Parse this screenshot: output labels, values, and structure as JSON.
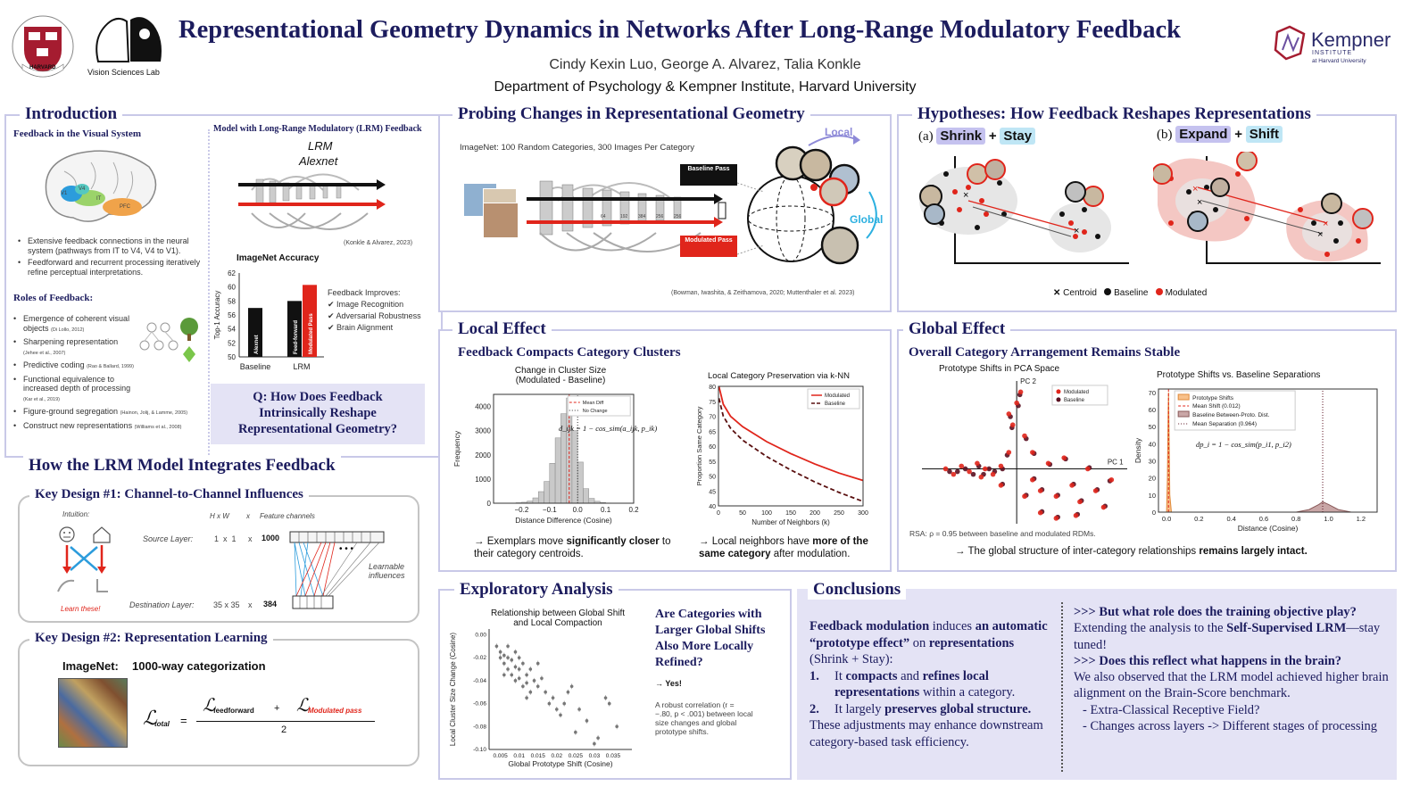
{
  "header": {
    "title": "Representational Geometry Dynamics in Networks After Long-Range Modulatory Feedback",
    "authors": "Cindy Kexin Luo, George A. Alvarez, Talia Konkle",
    "affiliation": "Department of Psychology & Kempner Institute, Harvard University",
    "lab_name": "Vision Sciences Lab",
    "harvard_shield_text": "VE RI TAS",
    "harvard_ribbon": "HARVARD",
    "kempner_name": "Kempner",
    "kempner_sub1": "INSTITUTE",
    "kempner_sub2": "at Harvard University"
  },
  "colors": {
    "navy": "#1c1c5e",
    "red": "#e0251b",
    "border": "#c9c9e8",
    "lav": "#e4e3f5",
    "shrink": "#c5c2ef",
    "stay": "#bfe6f5",
    "expand": "#c5c2ef",
    "shift": "#bfe6f5"
  },
  "intro": {
    "title": "Introduction",
    "feedback_heading": "Feedback in the Visual System",
    "bullets": [
      "Extensive feedback connections in the neural system (pathways from IT to V4, V4 to V1).",
      "Feedforward and recurrent processing iteratively refine perceptual interpretations."
    ],
    "roles_heading": "Roles of Feedback:",
    "roles": [
      {
        "text": "Emergence of coherent visual objects",
        "cite": "(Di Lollo, 2012)"
      },
      {
        "text": "Sharpening representation",
        "cite": "(Jehee et al., 2007)"
      },
      {
        "text": "Predictive coding",
        "cite": "(Rao & Ballard, 1999)"
      },
      {
        "text": "Functional equivalence to increased depth of processing",
        "cite": "(Kar et al., 2019)"
      },
      {
        "text": "Figure-ground segregation",
        "cite": "(Hainon, Jolij, & Lamme, 2005)"
      },
      {
        "text": "Construct new representations",
        "cite": "(Williams et al., 2008)"
      }
    ],
    "brain_labels": [
      "V1",
      "V4",
      "IT",
      "PFC"
    ],
    "model_heading": "Model with Long-Range Modulatory (LRM) Feedback",
    "lrm_label": "LRM",
    "alexnet_label": "Alexnet",
    "model_cite": "(Konkle & Alvarez, 2023)",
    "acc_chart_title": "ImageNet Accuracy",
    "acc_ylabel": "Top-1 Accuracy",
    "improves_heading": "Feedback Improves:",
    "improves": [
      "✔ Image Recognition",
      "✔ Adversarial Robustness",
      "✔ Brain Alignment"
    ],
    "question": "Q: How Does Feedback Intrinsically Reshape Representational Geometry?"
  },
  "acc_chart": {
    "type": "bar",
    "title": "ImageNet Accuracy",
    "ylabel": "Top-1 Accuracy",
    "ylim": [
      50,
      62
    ],
    "yticks": [
      50,
      52,
      54,
      56,
      58,
      60,
      62
    ],
    "groups": [
      "Baseline",
      "LRM"
    ],
    "bars": [
      {
        "group": "Baseline",
        "label": "Alexnet",
        "value": 57.0,
        "color": "#111111"
      },
      {
        "group": "LRM",
        "label": "Feed-forward",
        "value": 58.0,
        "color": "#111111"
      },
      {
        "group": "LRM",
        "label": "Modulated Pass",
        "value": 60.3,
        "color": "#e0251b"
      }
    ]
  },
  "lrm": {
    "title": "How the LRM Model Integrates Feedback",
    "kd1_title": "Key Design #1: Channel-to-Channel Influences",
    "intuition": "Intuition:",
    "learn_these": "Learn these!",
    "hxw": "H x W",
    "x": "x",
    "feature_channels": "Feature channels",
    "source_layer": "Source Layer:",
    "source_dims": "1  x  1",
    "source_channels": "1000",
    "dest_layer": "Destination Layer:",
    "dest_dims": "35 x 35",
    "dest_channels": "384",
    "learnable": "Learnable influences",
    "kd2_title": "Key Design #2: Representation Learning",
    "imagenet": "ImageNet:",
    "categorization": "1000-way categorization",
    "loss_total": "total",
    "loss_ff": "feedforward",
    "loss_mod": "Modulated pass",
    "plus": "+",
    "equals": "=",
    "divisor": "2"
  },
  "probing": {
    "title": "Probing Changes in Representational Geometry",
    "dataset": "ImageNet: 100 Random Categories, 300 Images Per Category",
    "baseline_pass": "Baseline Pass",
    "modulated_pass": "Modulated Pass",
    "layer_dims": [
      "64",
      "192",
      "384",
      "256",
      "256"
    ],
    "local": "Local",
    "global": "Global",
    "cite": "(Bowman, Iwashita, & Zeithamova, 2020; Muttenthaler et al. 2023)"
  },
  "hyp": {
    "title": "Hypotheses: How Feedback Reshapes Representations",
    "a_label": "(a)",
    "a_word1": "Shrink",
    "a_word2": "Stay",
    "b_label": "(b)",
    "b_word1": "Expand",
    "b_word2": "Shift",
    "plus": "+",
    "legend_centroid": "Centroid",
    "legend_baseline": "Baseline",
    "legend_modulated": "Modulated"
  },
  "local": {
    "title": "Local Effect",
    "subtitle": "Feedback Compacts Category Clusters",
    "hist_title1": "Change in Cluster Size",
    "hist_title2": "(Modulated - Baseline)",
    "hist_xlabel": "Distance Difference (Cosine)",
    "hist_ylabel": "Frequency",
    "hist_legend": [
      "Mean Diff",
      "No Change"
    ],
    "hist_formula": "d_ijk = 1 − cos_sim(a_ijk, p_ik)",
    "knn_title": "Local Category Preservation via k-NN",
    "knn_xlabel": "Number of Neighbors (k)",
    "knn_ylabel": "Proportion Same Category",
    "knn_legend": [
      "Modulated",
      "Baseline"
    ],
    "finding1_pre": "→ Exemplars move ",
    "finding1_bold": "significantly closer",
    "finding1_post": " to their category centroids.",
    "finding2_pre": "→ Local neighbors have ",
    "finding2_bold": "more of the same category",
    "finding2_post": " after modulation."
  },
  "global": {
    "title": "Global Effect",
    "subtitle": "Overall Category Arrangement Remains Stable",
    "pca_title": "Prototype Shifts in PCA Space",
    "pc1": "PC 1",
    "pc2": "PC 2",
    "pca_legend": [
      "Modulated",
      "Baseline"
    ],
    "rsa": "RSA: ρ = 0.95 between baseline and modulated RDMs.",
    "dens_title": "Prototype Shifts vs. Baseline Separations",
    "dens_xlabel": "Distance (Cosine)",
    "dens_ylabel": "Density",
    "dens_legend": [
      "Prototype Shifts",
      "Mean Shift (0.012)",
      "Baseline Between-Proto. Dist.",
      "Mean Separation (0.964)"
    ],
    "dens_formula": "dp_i = 1 − cos_sim(p_i1, p_i2)",
    "finding_pre": "→ The global structure of inter-category relationships ",
    "finding_bold": "remains largely intact."
  },
  "explore": {
    "title": "Exploratory Analysis",
    "chart_title1": "Relationship between Global Shift",
    "chart_title2": "and Local Compaction",
    "xlabel": "Global Prototype Shift (Cosine)",
    "ylabel": "Local Cluster Size Change (Cosine)",
    "question": "Are Categories with Larger Global Shifts Also More Locally Refined?",
    "answer": "→ Yes!",
    "note": "A robust correlation (r = −.80, p < .001) between local size changes and global prototype shifts."
  },
  "conclusions": {
    "title": "Conclusions",
    "p1_b1": "Feedback modulation",
    "p1_t1": " induces ",
    "p1_b2": "an automatic “prototype effect”",
    "p1_t2": " on ",
    "p1_b3": "representations",
    "p1_t3": " (Shrink + Stay):",
    "i1_num": "1.",
    "i1_t1": "It ",
    "i1_b1": "compacts",
    "i1_t2": " and ",
    "i1_b2": "refines local representations",
    "i1_t3": " within a category.",
    "i2_num": "2.",
    "i2_t1": "It largely ",
    "i2_b1": "preserves global structure.",
    "p2": "These adjustments may enhance downstream category-based task efficiency.",
    "q1": ">>> But what role does the training objective play?",
    "q1_t1": "Extending the analysis to the ",
    "q1_b1": "Self-Supervised LRM",
    "q1_t2": "—stay tuned!",
    "q2": ">>> Does this reflect what happens in the brain?",
    "q2_t1": "We also observed that the LRM model achieved higher brain alignment on the Brain-Score benchmark.",
    "d1": "-  Extra-Classical Receptive Field?",
    "d2": "-  Changes across layers -> Different stages of processing"
  },
  "chart_data": [
    {
      "type": "bar",
      "title": "Change in Cluster Size (Modulated - Baseline)",
      "xlabel": "Distance Difference (Cosine)",
      "ylabel": "Frequency",
      "xlim": [
        -0.3,
        0.2
      ],
      "ylim": [
        0,
        4500
      ],
      "xticks": [
        -0.2,
        -0.1,
        0.0,
        0.1,
        0.2
      ],
      "yticks": [
        0,
        1000,
        2000,
        3000,
        4000
      ],
      "bin_width": 0.02,
      "bin_starts": [
        -0.22,
        -0.2,
        -0.18,
        -0.16,
        -0.14,
        -0.12,
        -0.1,
        -0.08,
        -0.06,
        -0.04,
        -0.02,
        0.0,
        0.02,
        0.04,
        0.06,
        0.08,
        0.1
      ],
      "values": [
        20,
        40,
        90,
        220,
        480,
        900,
        1650,
        2700,
        3700,
        4350,
        3000,
        1700,
        600,
        200,
        80,
        30,
        10
      ],
      "mean_diff": -0.03,
      "no_change": 0.0
    },
    {
      "type": "line",
      "title": "Local Category Preservation via k-NN",
      "xlabel": "Number of Neighbors (k)",
      "ylabel": "Proportion Same Category",
      "xlim": [
        0,
        300
      ],
      "ylim": [
        40,
        80
      ],
      "xticks": [
        0,
        50,
        100,
        150,
        200,
        250,
        300
      ],
      "yticks": [
        40,
        45,
        50,
        55,
        60,
        65,
        70,
        75,
        80
      ],
      "x": [
        1,
        10,
        25,
        50,
        100,
        150,
        200,
        250,
        300
      ],
      "series": [
        {
          "name": "Modulated",
          "values": [
            80,
            74,
            70,
            66.5,
            61.5,
            57.5,
            54,
            51,
            48.5
          ]
        },
        {
          "name": "Baseline",
          "values": [
            76,
            70,
            66,
            62,
            56.5,
            52,
            48,
            44.5,
            41.5
          ]
        }
      ]
    },
    {
      "type": "scatter",
      "title": "Prototype Shifts in PCA Space",
      "xlabel": "PC 1",
      "ylabel": "PC 2",
      "xlim": [
        -1.2,
        1.4
      ],
      "ylim": [
        -1.0,
        1.6
      ],
      "series": [
        {
          "name": "Modulated",
          "points": [
            [
              -0.9,
              0.0
            ],
            [
              -0.8,
              -0.1
            ],
            [
              -0.7,
              0.05
            ],
            [
              -0.6,
              -0.05
            ],
            [
              -0.5,
              0.1
            ],
            [
              -0.45,
              -0.15
            ],
            [
              -0.4,
              0.0
            ],
            [
              -0.3,
              -0.1
            ],
            [
              -0.2,
              0.05
            ],
            [
              -0.1,
              0.3
            ],
            [
              -0.05,
              0.8
            ],
            [
              0.0,
              1.2
            ],
            [
              0.05,
              1.4
            ],
            [
              -0.1,
              1.0
            ],
            [
              0.1,
              0.6
            ],
            [
              0.2,
              -0.2
            ],
            [
              0.3,
              -0.4
            ],
            [
              0.4,
              0.1
            ],
            [
              0.5,
              -0.5
            ],
            [
              0.6,
              0.2
            ],
            [
              0.7,
              -0.3
            ],
            [
              0.8,
              -0.6
            ],
            [
              0.9,
              0.0
            ],
            [
              1.0,
              -0.4
            ],
            [
              1.1,
              -0.7
            ],
            [
              0.3,
              -0.8
            ],
            [
              0.5,
              -0.9
            ],
            [
              0.1,
              -0.5
            ],
            [
              -0.2,
              -0.3
            ],
            [
              0.2,
              0.3
            ],
            [
              0.75,
              -0.85
            ],
            [
              1.2,
              -0.2
            ]
          ]
        },
        {
          "name": "Baseline",
          "points": [
            [
              -0.85,
              -0.05
            ],
            [
              -0.75,
              -0.05
            ],
            [
              -0.65,
              0.0
            ],
            [
              -0.55,
              -0.1
            ],
            [
              -0.48,
              0.05
            ],
            [
              -0.42,
              -0.1
            ],
            [
              -0.35,
              0.0
            ],
            [
              -0.28,
              -0.05
            ],
            [
              -0.18,
              0.0
            ],
            [
              -0.12,
              0.25
            ],
            [
              -0.06,
              0.75
            ],
            [
              0.02,
              1.15
            ],
            [
              0.04,
              1.35
            ],
            [
              -0.08,
              0.95
            ],
            [
              0.12,
              0.55
            ],
            [
              0.22,
              -0.18
            ],
            [
              0.32,
              -0.38
            ],
            [
              0.42,
              0.08
            ],
            [
              0.52,
              -0.48
            ],
            [
              0.62,
              0.18
            ],
            [
              0.72,
              -0.28
            ],
            [
              0.82,
              -0.58
            ],
            [
              0.92,
              0.02
            ],
            [
              1.02,
              -0.38
            ],
            [
              1.12,
              -0.68
            ],
            [
              0.32,
              -0.78
            ],
            [
              0.52,
              -0.88
            ],
            [
              0.12,
              -0.48
            ],
            [
              -0.18,
              -0.28
            ],
            [
              0.22,
              0.28
            ],
            [
              0.77,
              -0.83
            ],
            [
              1.18,
              -0.22
            ]
          ]
        }
      ]
    },
    {
      "type": "area",
      "title": "Prototype Shifts vs. Baseline Separations",
      "xlabel": "Distance (Cosine)",
      "ylabel": "Density",
      "xlim": [
        -0.05,
        1.3
      ],
      "ylim": [
        0,
        72
      ],
      "xticks": [
        0.0,
        0.2,
        0.4,
        0.6,
        0.8,
        1.0,
        1.2
      ],
      "yticks": [
        0,
        10,
        20,
        30,
        40,
        50,
        60,
        70
      ],
      "series": [
        {
          "name": "Prototype Shifts",
          "x": [
            0.0,
            0.005,
            0.01,
            0.012,
            0.015,
            0.02,
            0.03
          ],
          "values": [
            0,
            20,
            60,
            70,
            50,
            10,
            0
          ]
        },
        {
          "name": "Baseline Between-Proto. Dist.",
          "x": [
            0.8,
            0.88,
            0.94,
            0.964,
            1.0,
            1.06,
            1.14
          ],
          "values": [
            0,
            1.5,
            4.5,
            6,
            4.5,
            1.5,
            0
          ]
        }
      ],
      "mean_shift": 0.012,
      "mean_separation": 0.964
    },
    {
      "type": "scatter",
      "title": "Relationship between Global Shift and Local Compaction",
      "xlabel": "Global Prototype Shift (Cosine)",
      "ylabel": "Local Cluster Size Change (Cosine)",
      "xlim": [
        0.002,
        0.04
      ],
      "ylim": [
        -0.1,
        0.005
      ],
      "xticks": [
        0.005,
        0.01,
        0.015,
        0.02,
        0.025,
        0.03,
        0.035
      ],
      "yticks": [
        0.0,
        -0.02,
        -0.04,
        -0.06,
        -0.08,
        -0.1
      ],
      "points": [
        [
          0.004,
          -0.01
        ],
        [
          0.005,
          -0.015
        ],
        [
          0.005,
          -0.02
        ],
        [
          0.006,
          -0.018
        ],
        [
          0.006,
          -0.025
        ],
        [
          0.007,
          -0.02
        ],
        [
          0.007,
          -0.03
        ],
        [
          0.008,
          -0.022
        ],
        [
          0.008,
          -0.035
        ],
        [
          0.009,
          -0.028
        ],
        [
          0.009,
          -0.04
        ],
        [
          0.01,
          -0.03
        ],
        [
          0.01,
          -0.038
        ],
        [
          0.011,
          -0.025
        ],
        [
          0.011,
          -0.045
        ],
        [
          0.012,
          -0.035
        ],
        [
          0.012,
          -0.042
        ],
        [
          0.013,
          -0.03
        ],
        [
          0.013,
          -0.05
        ],
        [
          0.014,
          -0.04
        ],
        [
          0.015,
          -0.045
        ],
        [
          0.016,
          -0.038
        ],
        [
          0.017,
          -0.05
        ],
        [
          0.018,
          -0.06
        ],
        [
          0.019,
          -0.055
        ],
        [
          0.02,
          -0.065
        ],
        [
          0.021,
          -0.07
        ],
        [
          0.022,
          -0.06
        ],
        [
          0.023,
          -0.05
        ],
        [
          0.024,
          -0.045
        ],
        [
          0.025,
          -0.085
        ],
        [
          0.026,
          -0.065
        ],
        [
          0.028,
          -0.075
        ],
        [
          0.03,
          -0.095
        ],
        [
          0.031,
          -0.09
        ],
        [
          0.033,
          -0.055
        ],
        [
          0.034,
          -0.06
        ],
        [
          0.036,
          -0.08
        ],
        [
          0.007,
          -0.01
        ],
        [
          0.009,
          -0.015
        ],
        [
          0.006,
          -0.035
        ],
        [
          0.015,
          -0.025
        ],
        [
          0.012,
          -0.055
        ],
        [
          0.01,
          -0.02
        ]
      ]
    }
  ]
}
